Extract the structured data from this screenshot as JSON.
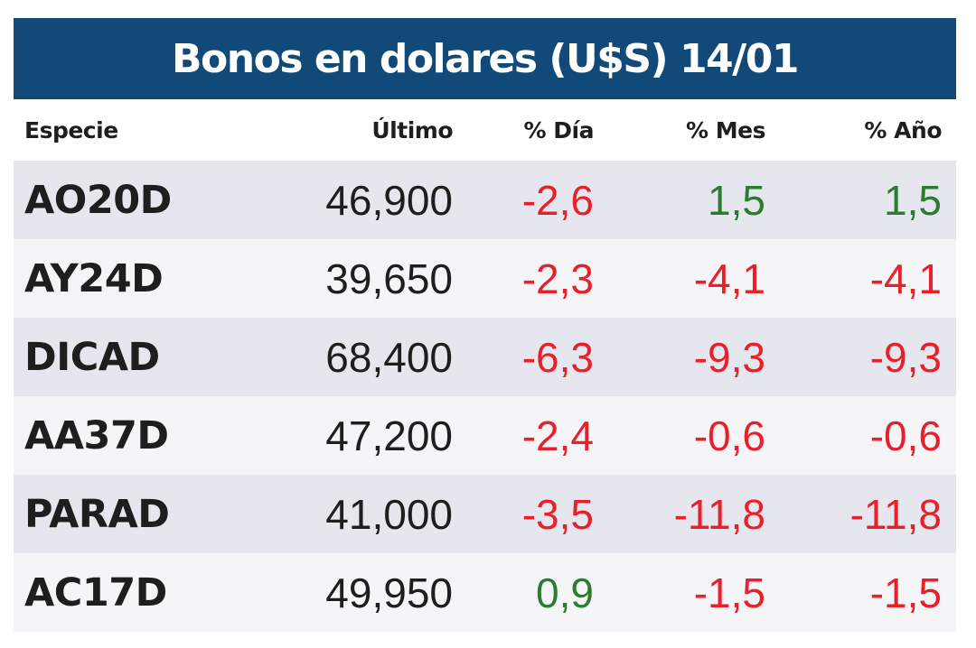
{
  "title": "Bonos en dolares (U$S) 14/01",
  "columns": [
    "Especie",
    "Último",
    "% Día",
    "% Mes",
    "% Año"
  ],
  "rows": [
    {
      "especie": "AO20D",
      "ultimo": "46,900",
      "dia": "-2,6",
      "mes": "1,5",
      "anio": "1,5"
    },
    {
      "especie": "AY24D",
      "ultimo": "39,650",
      "dia": "-2,3",
      "mes": "-4,1",
      "anio": "-4,1"
    },
    {
      "especie": "DICAD",
      "ultimo": "68,400",
      "dia": "-6,3",
      "mes": "-9,3",
      "anio": "-9,3"
    },
    {
      "especie": "AA37D",
      "ultimo": "47,200",
      "dia": "-2,4",
      "mes": "-0,6",
      "anio": "-0,6"
    },
    {
      "especie": "PARAD",
      "ultimo": "41,000",
      "dia": "-3,5",
      "mes": "-11,8",
      "anio": "-11,8"
    },
    {
      "especie": "AC17D",
      "ultimo": "49,950",
      "dia": "0,9",
      "mes": "-1,5",
      "anio": "-1,5"
    }
  ],
  "colors": {
    "title_bg": "#114a78",
    "negative": "#e8202a",
    "positive": "#2a7d2e",
    "row_shade": "#e6e7ee"
  }
}
